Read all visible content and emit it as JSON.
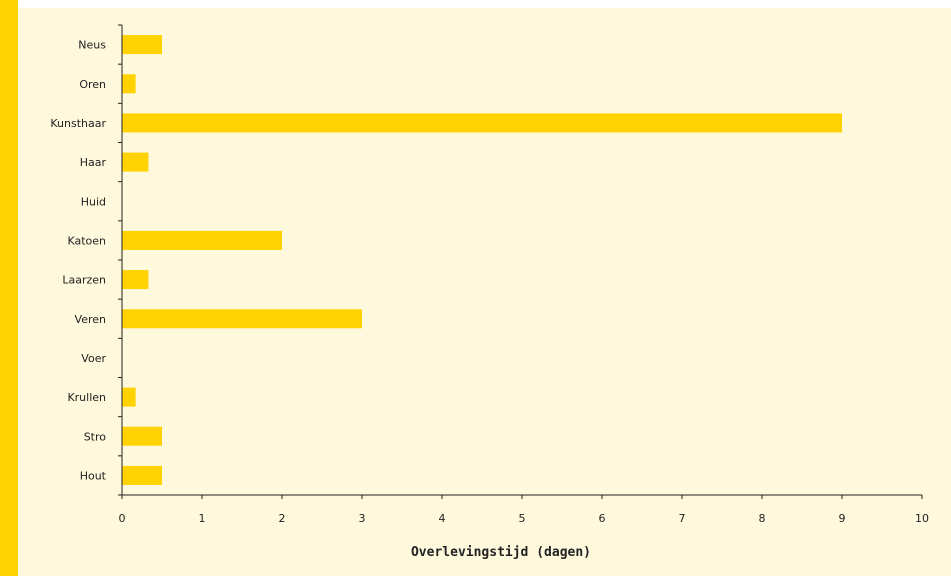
{
  "colors": {
    "bar": "#FFD200",
    "accent": "#FFD300",
    "panel_background": "#FEF8DC",
    "axis": "#222222"
  },
  "chart_data": {
    "type": "bar",
    "orientation": "horizontal",
    "categories": [
      "Neus",
      "Oren",
      "Kunsthaar",
      "Haar",
      "Huid",
      "Katoen",
      "Laarzen",
      "Veren",
      "Voer",
      "Krullen",
      "Stro",
      "Hout"
    ],
    "values": [
      0.5,
      0.17,
      9.0,
      0.33,
      0,
      2.0,
      0.33,
      3.0,
      0,
      0.17,
      0.5,
      0.5
    ],
    "xlabel": "Overlevingstijd (dagen)",
    "xlim": [
      0,
      10
    ],
    "xticks": [
      "0",
      "1",
      "2",
      "3",
      "4",
      "5",
      "6",
      "7",
      "8",
      "9",
      "10"
    ],
    "grid": false,
    "legend": "none"
  }
}
